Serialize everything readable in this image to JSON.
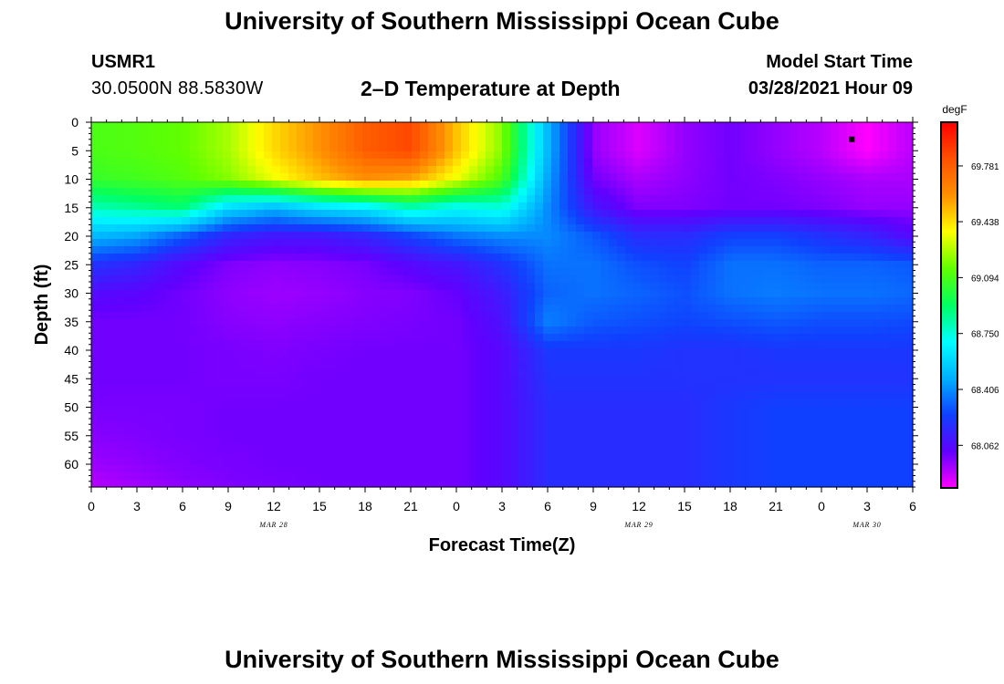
{
  "header": {
    "title": "University of Southern Mississippi Ocean Cube",
    "station_id": "USMR1",
    "station_coords": "30.0500N  88.5830W",
    "plot_title": "2–D Temperature at Depth",
    "model_label": "Model Start Time",
    "model_time": "03/28/2021 Hour 09"
  },
  "footer": {
    "title": "University of Southern Mississippi Ocean Cube"
  },
  "chart_data": {
    "type": "heatmap",
    "xlabel": "Forecast Time(Z)",
    "ylabel": "Depth (ft)",
    "x_tick_labels": [
      "0",
      "3",
      "6",
      "9",
      "12",
      "15",
      "18",
      "21",
      "0",
      "3",
      "6",
      "9",
      "12",
      "15",
      "18",
      "21",
      "0",
      "3",
      "6"
    ],
    "date_labels": [
      {
        "text": "MAR 28",
        "at_hour": 12
      },
      {
        "text": "MAR 29",
        "at_hour": 36
      },
      {
        "text": "MAR 30",
        "at_hour": 51
      }
    ],
    "x_range_hours": [
      0,
      54
    ],
    "y_tick_labels": [
      "0",
      "5",
      "10",
      "15",
      "20",
      "25",
      "30",
      "35",
      "40",
      "45",
      "50",
      "55",
      "60"
    ],
    "y_range_ft": [
      0,
      64
    ],
    "colorbar": {
      "unit": "degF",
      "labels": [
        "69.781",
        "69.438",
        "69.094",
        "68.750",
        "68.406",
        "68.062"
      ],
      "values": [
        69.781,
        69.438,
        69.094,
        68.75,
        68.406,
        68.062
      ],
      "min": 67.8,
      "max": 70.05,
      "colors": [
        "#ff00ff",
        "#6000ff",
        "#1040ff",
        "#00b0ff",
        "#00ffff",
        "#00ff60",
        "#60ff00",
        "#ffff00",
        "#ff9000",
        "#ff5000",
        "#ff0000"
      ]
    },
    "grid_hours": [
      0,
      3,
      6,
      9,
      12,
      15,
      18,
      21,
      24,
      27,
      30,
      33,
      36,
      39,
      42,
      45,
      48,
      51,
      54
    ],
    "grid_depths_ft": [
      0,
      5,
      10,
      15,
      20,
      25,
      30,
      35,
      40,
      45,
      50,
      55,
      60,
      64
    ],
    "temperature_degF": [
      [
        69.1,
        69.12,
        69.15,
        69.25,
        69.45,
        69.6,
        69.78,
        69.85,
        69.5,
        69.2,
        68.5,
        67.95,
        67.85,
        67.95,
        68.0,
        67.95,
        67.9,
        67.8,
        67.9
      ],
      [
        69.1,
        69.12,
        69.15,
        69.25,
        69.45,
        69.6,
        69.78,
        69.85,
        69.5,
        69.2,
        68.5,
        67.95,
        67.85,
        67.95,
        68.0,
        67.95,
        67.9,
        67.8,
        67.9
      ],
      [
        69.05,
        69.08,
        69.12,
        69.2,
        69.35,
        69.5,
        69.6,
        69.55,
        69.35,
        69.1,
        68.45,
        68.0,
        67.92,
        67.96,
        68.0,
        67.98,
        67.95,
        67.92,
        67.92
      ],
      [
        68.8,
        68.85,
        68.9,
        68.6,
        68.5,
        68.6,
        68.65,
        68.8,
        68.7,
        68.75,
        68.4,
        68.1,
        67.98,
        67.98,
        68.0,
        68.0,
        67.98,
        67.95,
        67.95
      ],
      [
        68.5,
        68.45,
        68.3,
        68.15,
        68.1,
        68.1,
        68.15,
        68.25,
        68.35,
        68.4,
        68.4,
        68.3,
        68.18,
        68.18,
        68.25,
        68.25,
        68.2,
        68.15,
        68.05
      ],
      [
        68.2,
        68.15,
        68.05,
        67.98,
        67.96,
        67.97,
        67.99,
        68.05,
        68.1,
        68.2,
        68.35,
        68.35,
        68.28,
        68.25,
        68.35,
        68.35,
        68.32,
        68.32,
        68.3
      ],
      [
        68.06,
        68.04,
        68.0,
        67.96,
        67.94,
        67.95,
        67.97,
        67.98,
        68.02,
        68.12,
        68.32,
        68.35,
        68.32,
        68.28,
        68.35,
        68.37,
        68.35,
        68.35,
        68.33
      ],
      [
        68.0,
        68.0,
        68.0,
        67.97,
        67.96,
        67.97,
        67.98,
        67.99,
        68.0,
        68.08,
        68.38,
        68.3,
        68.28,
        68.26,
        68.28,
        68.3,
        68.28,
        68.28,
        68.27
      ],
      [
        68.0,
        68.0,
        68.0,
        67.99,
        67.98,
        67.99,
        68.0,
        68.0,
        68.0,
        68.05,
        68.22,
        68.22,
        68.22,
        68.2,
        68.2,
        68.22,
        68.22,
        68.22,
        68.22
      ],
      [
        68.0,
        68.0,
        68.0,
        67.99,
        67.99,
        68.0,
        68.0,
        68.0,
        68.0,
        68.05,
        68.2,
        68.2,
        68.2,
        68.2,
        68.2,
        68.2,
        68.2,
        68.2,
        68.2
      ],
      [
        67.99,
        67.99,
        67.99,
        68.0,
        68.0,
        68.0,
        68.0,
        68.0,
        68.0,
        68.05,
        68.18,
        68.18,
        68.18,
        68.18,
        68.22,
        68.25,
        68.25,
        68.25,
        68.25
      ],
      [
        67.97,
        67.98,
        67.99,
        68.0,
        68.0,
        68.0,
        68.0,
        68.0,
        68.0,
        68.05,
        68.18,
        68.18,
        68.18,
        68.18,
        68.22,
        68.25,
        68.25,
        68.25,
        68.25
      ],
      [
        67.94,
        67.96,
        67.98,
        67.99,
        68.0,
        68.0,
        68.0,
        68.0,
        68.0,
        68.05,
        68.18,
        68.18,
        68.18,
        68.18,
        68.22,
        68.25,
        68.25,
        68.25,
        68.25
      ],
      [
        67.9,
        67.93,
        67.96,
        67.98,
        67.99,
        68.0,
        68.0,
        68.0,
        68.0,
        68.05,
        68.18,
        68.18,
        68.18,
        68.18,
        68.22,
        68.25,
        68.25,
        68.25,
        68.25
      ]
    ],
    "marker": {
      "hour": 50,
      "depth_ft": 3
    }
  }
}
